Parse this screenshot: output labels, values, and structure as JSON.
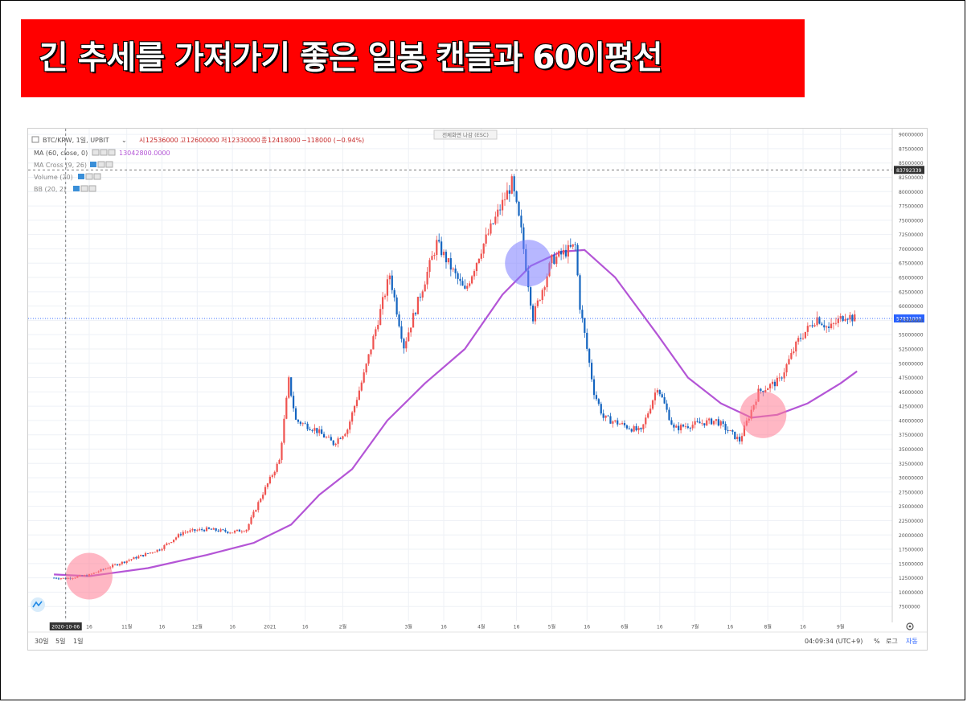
{
  "banner": {
    "title": "긴 추세를 가져가기 좋은 일봉 캔들과 60이평선"
  },
  "header": {
    "symbol": "BTC/KRW, 1일, UPBIT",
    "open_label": "시",
    "open": "12536000",
    "high_label": "고",
    "high": "12600000",
    "low_label": "저",
    "low": "12330000",
    "close_label": "종",
    "close": "12418000",
    "change": "−118000 (−0.94%)",
    "fullscreen_exit": "전체화면 나감 (ESC)"
  },
  "indicators": [
    {
      "label": "MA (60, close, 0)",
      "value": "13042800.0000"
    },
    {
      "label": "MA Cross (9, 26)"
    },
    {
      "label": "Volume (20)"
    },
    {
      "label": "BB (20, 2)"
    }
  ],
  "footer": {
    "ranges": [
      "30일",
      "5일",
      "1일"
    ],
    "time": "04:09:34 (UTC+9)",
    "percent": "%",
    "log": "로그",
    "auto": "자동"
  },
  "colors": {
    "up": "#ef5350",
    "down": "#1565c0",
    "ma": "#b455d6",
    "price_label": "#2962ff",
    "circle_red": "#ff7b93",
    "circle_blue": "#7b7bff"
  },
  "chart_data": {
    "type": "candlestick",
    "y_scale": "linear",
    "ylim": [
      5000000,
      91000000
    ],
    "y_ticks": [
      "7500000",
      "10000000",
      "12500000",
      "15000000",
      "17500000",
      "20000000",
      "22500000",
      "25000000",
      "27500000",
      "30000000",
      "32500000",
      "35000000",
      "37500000",
      "40000000",
      "42500000",
      "45000000",
      "47500000",
      "50000000",
      "52500000",
      "55000000",
      "57500000",
      "60000000",
      "62500000",
      "65000000",
      "67500000",
      "70000000",
      "72500000",
      "75000000",
      "77500000",
      "80000000",
      "82500000",
      "85000000",
      "87500000",
      "90000000"
    ],
    "x_ticks": [
      "2020-10-06",
      "16",
      "11월",
      "16",
      "12월",
      "16",
      "2021",
      "16",
      "2월",
      "3월",
      "16",
      "4월",
      "16",
      "5월",
      "16",
      "6월",
      "16",
      "7월",
      "16",
      "8월",
      "16",
      "9월"
    ],
    "current_price": "57831000",
    "crosshair_price": "83792339",
    "crosshair_date": "2020-10-06",
    "ohlc_path": [
      {
        "d": "2020-10-01",
        "p": 12500000
      },
      {
        "d": "2020-10-06",
        "p": 12400000
      },
      {
        "d": "2020-10-16",
        "p": 13000000
      },
      {
        "d": "2020-10-22",
        "p": 14000000
      },
      {
        "d": "2020-11-01",
        "p": 15500000
      },
      {
        "d": "2020-11-15",
        "p": 17500000
      },
      {
        "d": "2020-11-25",
        "p": 20500000
      },
      {
        "d": "2020-12-05",
        "p": 21000000
      },
      {
        "d": "2020-12-16",
        "p": 20500000
      },
      {
        "d": "2020-12-22",
        "p": 21000000
      },
      {
        "d": "2020-12-28",
        "p": 26500000
      },
      {
        "d": "2021-01-05",
        "p": 33000000
      },
      {
        "d": "2021-01-09",
        "p": 47000000
      },
      {
        "d": "2021-01-12",
        "p": 40000000
      },
      {
        "d": "2021-01-20",
        "p": 38500000
      },
      {
        "d": "2021-01-28",
        "p": 36000000
      },
      {
        "d": "2021-02-03",
        "p": 38500000
      },
      {
        "d": "2021-02-10",
        "p": 48000000
      },
      {
        "d": "2021-02-21",
        "p": 65500000
      },
      {
        "d": "2021-02-27",
        "p": 53000000
      },
      {
        "d": "2021-03-13",
        "p": 71000000
      },
      {
        "d": "2021-03-25",
        "p": 62500000
      },
      {
        "d": "2021-04-01",
        "p": 70000000
      },
      {
        "d": "2021-04-14",
        "p": 81500000
      },
      {
        "d": "2021-04-18",
        "p": 73000000
      },
      {
        "d": "2021-04-23",
        "p": 58000000
      },
      {
        "d": "2021-05-01",
        "p": 68000000
      },
      {
        "d": "2021-05-11",
        "p": 70500000
      },
      {
        "d": "2021-05-13",
        "p": 60000000
      },
      {
        "d": "2021-05-19",
        "p": 45000000
      },
      {
        "d": "2021-05-23",
        "p": 40500000
      },
      {
        "d": "2021-06-08",
        "p": 38000000
      },
      {
        "d": "2021-06-15",
        "p": 46000000
      },
      {
        "d": "2021-06-22",
        "p": 38500000
      },
      {
        "d": "2021-06-26",
        "p": 39000000
      },
      {
        "d": "2021-07-10",
        "p": 40000000
      },
      {
        "d": "2021-07-20",
        "p": 36500000
      },
      {
        "d": "2021-07-28",
        "p": 45000000
      },
      {
        "d": "2021-08-06",
        "p": 47000000
      },
      {
        "d": "2021-08-14",
        "p": 54000000
      },
      {
        "d": "2021-08-22",
        "p": 58000000
      },
      {
        "d": "2021-08-27",
        "p": 56000000
      },
      {
        "d": "2021-09-03",
        "p": 58500000
      },
      {
        "d": "2021-09-07",
        "p": 57800000
      }
    ],
    "ma60_path": [
      {
        "d": "2020-10-01",
        "p": 13100000
      },
      {
        "d": "2020-10-16",
        "p": 12800000
      },
      {
        "d": "2020-11-10",
        "p": 14200000
      },
      {
        "d": "2020-12-05",
        "p": 16500000
      },
      {
        "d": "2020-12-25",
        "p": 18600000
      },
      {
        "d": "2021-01-10",
        "p": 21800000
      },
      {
        "d": "2021-01-22",
        "p": 27000000
      },
      {
        "d": "2021-02-05",
        "p": 31500000
      },
      {
        "d": "2021-02-20",
        "p": 40000000
      },
      {
        "d": "2021-03-08",
        "p": 46500000
      },
      {
        "d": "2021-03-25",
        "p": 52500000
      },
      {
        "d": "2021-04-10",
        "p": 62000000
      },
      {
        "d": "2021-04-22",
        "p": 67000000
      },
      {
        "d": "2021-05-05",
        "p": 69500000
      },
      {
        "d": "2021-05-15",
        "p": 69800000
      },
      {
        "d": "2021-05-28",
        "p": 65000000
      },
      {
        "d": "2021-06-15",
        "p": 55000000
      },
      {
        "d": "2021-06-28",
        "p": 47500000
      },
      {
        "d": "2021-07-12",
        "p": 43000000
      },
      {
        "d": "2021-07-25",
        "p": 40500000
      },
      {
        "d": "2021-08-05",
        "p": 41000000
      },
      {
        "d": "2021-08-18",
        "p": 43000000
      },
      {
        "d": "2021-09-01",
        "p": 46500000
      },
      {
        "d": "2021-09-08",
        "p": 48600000
      }
    ],
    "highlights": [
      {
        "date": "2020-10-16",
        "price": 12800000,
        "color": "circle_red"
      },
      {
        "date": "2021-04-21",
        "price": 67500000,
        "color": "circle_blue"
      },
      {
        "date": "2021-07-30",
        "price": 41000000,
        "color": "circle_red"
      }
    ]
  }
}
